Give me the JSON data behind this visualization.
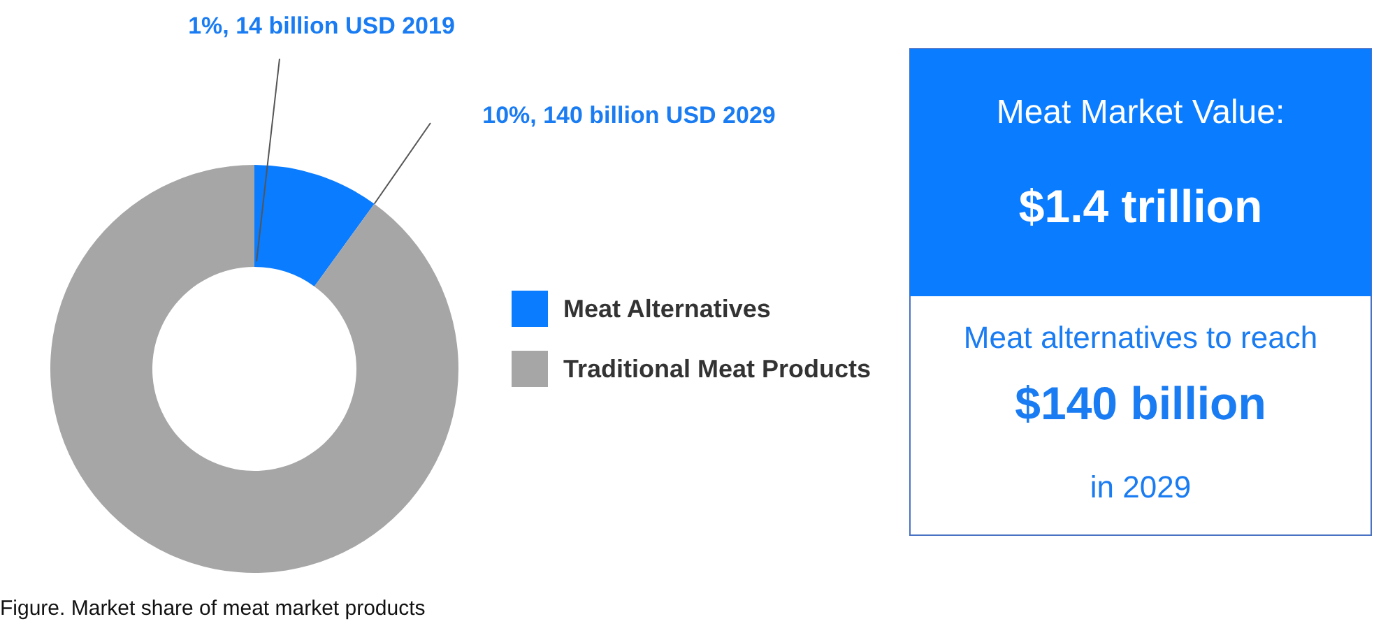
{
  "chart_data": [
    {
      "type": "donut",
      "categories": [
        "Meat Alternatives",
        "Traditional Meat Products"
      ],
      "values": [
        10,
        90
      ],
      "colors": [
        "#0a7cff",
        "#a6a6a6"
      ],
      "legend": "right",
      "annotations": [
        "1%, 14 billion USD 2019",
        "10%, 140 billion USD 2029",
        "Figure. Market share of meat market products"
      ]
    },
    {
      "type": "other",
      "title": "Meat Market Value:",
      "subtitle": "$1.4 trillion",
      "annotations": [
        "Meat alternatives to reach",
        "$140 billion",
        "in 2029"
      ]
    }
  ]
}
